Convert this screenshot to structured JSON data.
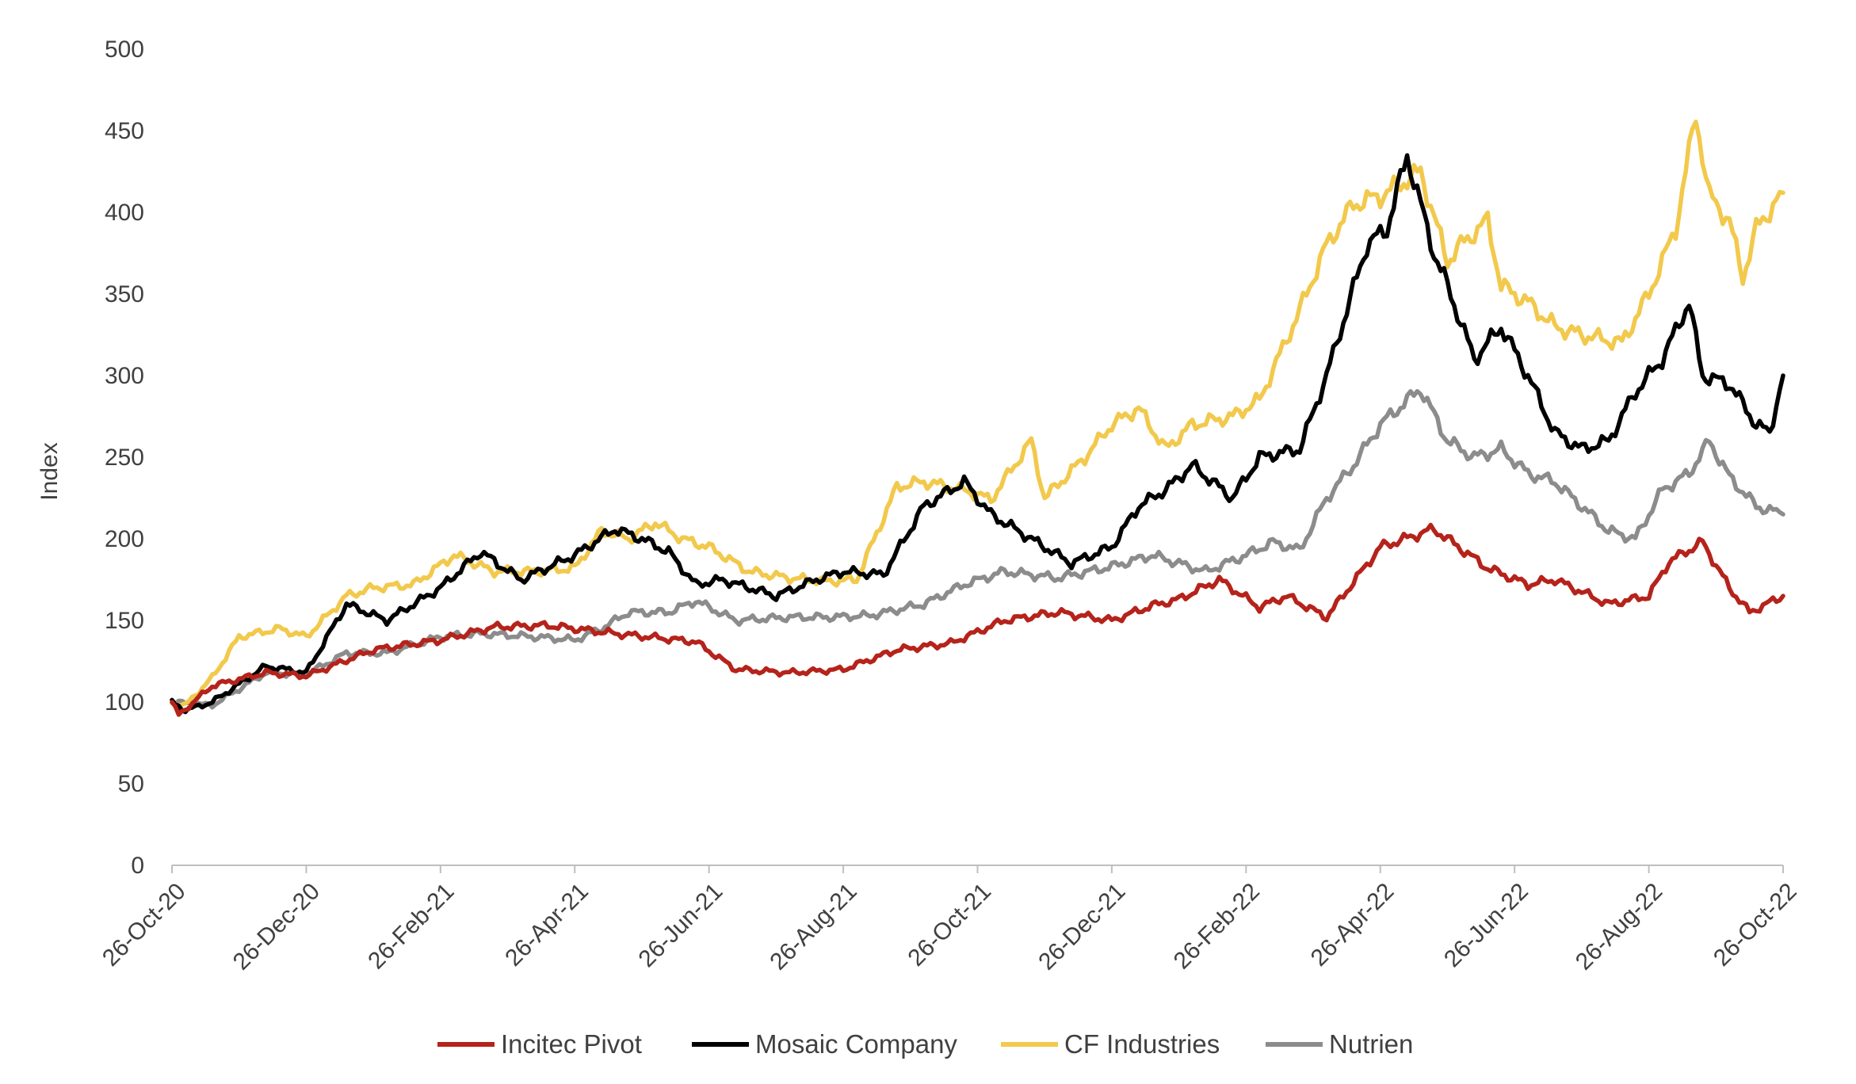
{
  "chart_data": {
    "type": "line",
    "title": "",
    "xlabel": "",
    "ylabel": "Index",
    "ylim": [
      0,
      500
    ],
    "yticks": [
      0,
      50,
      100,
      150,
      200,
      250,
      300,
      350,
      400,
      450,
      500
    ],
    "grid": false,
    "legend_position": "bottom",
    "categories": [
      "26-Oct-20",
      "26-Dec-20",
      "26-Feb-21",
      "26-Apr-21",
      "26-Jun-21",
      "26-Aug-21",
      "26-Oct-21",
      "26-Dec-21",
      "26-Feb-22",
      "26-Apr-22",
      "26-Jun-22",
      "26-Aug-22",
      "26-Oct-22"
    ],
    "series": [
      {
        "name": "Incitec Pivot",
        "color": "#B5231B",
        "x": [
          0,
          0.05,
          0.3,
          0.7,
          1.0,
          1.5,
          2.0,
          2.4,
          2.8,
          3.3,
          3.9,
          4.2,
          4.6,
          5.0,
          5.4,
          5.8,
          6.2,
          6.6,
          7.0,
          7.3,
          7.5,
          7.8,
          8.1,
          8.3,
          8.6,
          9.0,
          9.4,
          9.8,
          10.1,
          10.3,
          10.7,
          11.0,
          11.15,
          11.4,
          11.6,
          11.75,
          12.0
        ],
        "values": [
          100,
          92,
          110,
          118,
          116,
          132,
          138,
          146,
          147,
          142,
          137,
          120,
          118,
          120,
          132,
          136,
          150,
          155,
          150,
          159,
          163,
          175,
          158,
          165,
          152,
          195,
          206,
          182,
          172,
          175,
          160,
          165,
          186,
          198,
          170,
          155,
          165
        ]
      },
      {
        "name": "Mosaic Company",
        "color": "#000000",
        "x": [
          0,
          0.1,
          0.3,
          0.7,
          1.0,
          1.3,
          1.6,
          2.0,
          2.3,
          2.6,
          3.0,
          3.3,
          3.5,
          3.7,
          3.9,
          4.1,
          4.5,
          4.8,
          5.0,
          5.3,
          5.6,
          5.9,
          6.1,
          6.4,
          6.7,
          7.0,
          7.2,
          7.4,
          7.6,
          7.9,
          8.1,
          8.4,
          8.6,
          8.9,
          9.05,
          9.2,
          9.4,
          9.5,
          9.7,
          9.9,
          10.1,
          10.3,
          10.5,
          10.7,
          10.9,
          11.1,
          11.3,
          11.4,
          11.6,
          11.8,
          11.9,
          12.0
        ],
        "values": [
          100,
          95,
          100,
          122,
          118,
          160,
          150,
          170,
          192,
          175,
          190,
          206,
          200,
          192,
          172,
          175,
          165,
          175,
          180,
          178,
          220,
          235,
          215,
          200,
          185,
          195,
          220,
          230,
          245,
          225,
          250,
          255,
          300,
          380,
          390,
          435,
          375,
          355,
          310,
          330,
          300,
          265,
          255,
          260,
          290,
          310,
          345,
          300,
          295,
          270,
          265,
          300
        ]
      },
      {
        "name": "CF Industries",
        "color": "#F2C94C",
        "x": [
          0,
          0.1,
          0.3,
          0.5,
          0.8,
          1.0,
          1.3,
          1.5,
          1.8,
          2.1,
          2.4,
          2.7,
          3.0,
          3.2,
          3.4,
          3.6,
          3.8,
          4.0,
          4.3,
          4.6,
          4.9,
          5.1,
          5.4,
          5.6,
          5.9,
          6.1,
          6.4,
          6.5,
          6.8,
          7.0,
          7.2,
          7.4,
          7.6,
          7.9,
          8.1,
          8.4,
          8.6,
          8.8,
          9.0,
          9.3,
          9.5,
          9.6,
          9.8,
          9.9,
          10.1,
          10.3,
          10.5,
          10.8,
          11.0,
          11.2,
          11.35,
          11.45,
          11.6,
          11.7,
          11.8,
          12.0
        ],
        "values": [
          100,
          98,
          115,
          140,
          145,
          140,
          165,
          170,
          172,
          190,
          180,
          180,
          182,
          205,
          200,
          210,
          200,
          195,
          180,
          176,
          174,
          175,
          232,
          235,
          230,
          224,
          260,
          225,
          250,
          270,
          280,
          255,
          270,
          275,
          285,
          340,
          380,
          405,
          410,
          425,
          370,
          380,
          395,
          355,
          345,
          330,
          325,
          320,
          350,
          390,
          460,
          410,
          395,
          360,
          390,
          412
        ]
      },
      {
        "name": "Nutrien",
        "color": "#8C8C8C",
        "x": [
          0,
          0.3,
          0.7,
          1.0,
          1.3,
          1.6,
          2.0,
          2.3,
          2.7,
          3.0,
          3.2,
          3.4,
          3.7,
          3.9,
          4.2,
          4.6,
          4.9,
          5.2,
          5.6,
          5.9,
          6.2,
          6.6,
          7.0,
          7.3,
          7.7,
          8.0,
          8.2,
          8.4,
          8.6,
          8.8,
          9.0,
          9.3,
          9.5,
          9.7,
          9.9,
          10.1,
          10.3,
          10.5,
          10.7,
          10.9,
          11.1,
          11.3,
          11.45,
          11.6,
          11.8,
          12.0
        ],
        "values": [
          100,
          98,
          118,
          117,
          130,
          130,
          140,
          142,
          140,
          138,
          145,
          155,
          155,
          162,
          150,
          152,
          152,
          153,
          160,
          172,
          180,
          176,
          183,
          190,
          180,
          190,
          198,
          193,
          225,
          245,
          270,
          292,
          260,
          250,
          255,
          240,
          235,
          220,
          205,
          200,
          230,
          240,
          260,
          238,
          220,
          215
        ]
      }
    ]
  }
}
